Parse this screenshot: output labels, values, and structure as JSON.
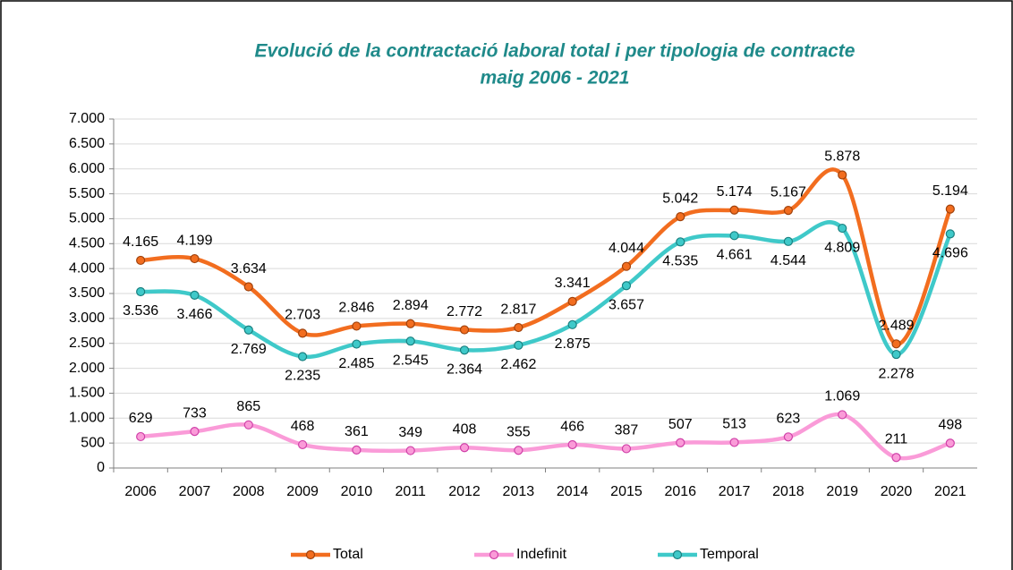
{
  "chart_data": {
    "type": "line",
    "title": "Evolució de la contractació laboral total i per tipologia de contracte",
    "subtitle": "maig 2006 - 2021",
    "categories": [
      "2006",
      "2007",
      "2008",
      "2009",
      "2010",
      "2011",
      "2012",
      "2013",
      "2014",
      "2015",
      "2016",
      "2017",
      "2018",
      "2019",
      "2020",
      "2021"
    ],
    "series": [
      {
        "name": "Total",
        "color": "#f26d1f",
        "marker_edge": "#a0420c",
        "values": [
          4165,
          4199,
          3634,
          2703,
          2846,
          2894,
          2772,
          2817,
          3341,
          4044,
          5042,
          5174,
          5167,
          5878,
          2489,
          5194
        ],
        "value_labels": [
          "4.165",
          "4.199",
          "3.634",
          "2.703",
          "2.846",
          "2.894",
          "2.772",
          "2.817",
          "3.341",
          "4.044",
          "5.042",
          "5.174",
          "5.167",
          "5.878",
          "2.489",
          "5.194"
        ]
      },
      {
        "name": "Indefinit",
        "color": "#fa9bd8",
        "marker_edge": "#d040a8",
        "values": [
          629,
          733,
          865,
          468,
          361,
          349,
          408,
          355,
          466,
          387,
          507,
          513,
          623,
          1069,
          211,
          498
        ],
        "value_labels": [
          "629",
          "733",
          "865",
          "468",
          "361",
          "349",
          "408",
          "355",
          "466",
          "387",
          "507",
          "513",
          "623",
          "1.069",
          "211",
          "498"
        ]
      },
      {
        "name": "Temporal",
        "color": "#3fc9c9",
        "marker_edge": "#1a8080",
        "values": [
          3536,
          3466,
          2769,
          2235,
          2485,
          2545,
          2364,
          2462,
          2875,
          3657,
          4535,
          4661,
          4544,
          4809,
          2278,
          4696
        ],
        "value_labels": [
          "3.536",
          "3.466",
          "2.769",
          "2.235",
          "2.485",
          "2.545",
          "2.364",
          "2.462",
          "2.875",
          "3.657",
          "4.535",
          "4.661",
          "4.544",
          "4.809",
          "2.278",
          "4.696"
        ]
      }
    ],
    "ylim": [
      0,
      7000
    ],
    "yticks": [
      0,
      500,
      {
        "value": 1000,
        "label": "1.000"
      },
      {
        "value": 1500,
        "label": "1.500"
      },
      {
        "value": 2000,
        "label": "2.000"
      },
      {
        "value": 2500,
        "label": "2.500"
      },
      {
        "value": 3000,
        "label": "3.000"
      },
      {
        "value": 3500,
        "label": "3.500"
      },
      {
        "value": 4000,
        "label": "4.000"
      },
      {
        "value": 4500,
        "label": "4.500"
      },
      {
        "value": 5000,
        "label": "5.000"
      },
      {
        "value": 5500,
        "label": "5.500"
      },
      {
        "value": 6000,
        "label": "6.000"
      },
      {
        "value": 6500,
        "label": "6.500"
      },
      {
        "value": 7000,
        "label": "7.000"
      }
    ],
    "grid": true,
    "legend": "bottom"
  }
}
